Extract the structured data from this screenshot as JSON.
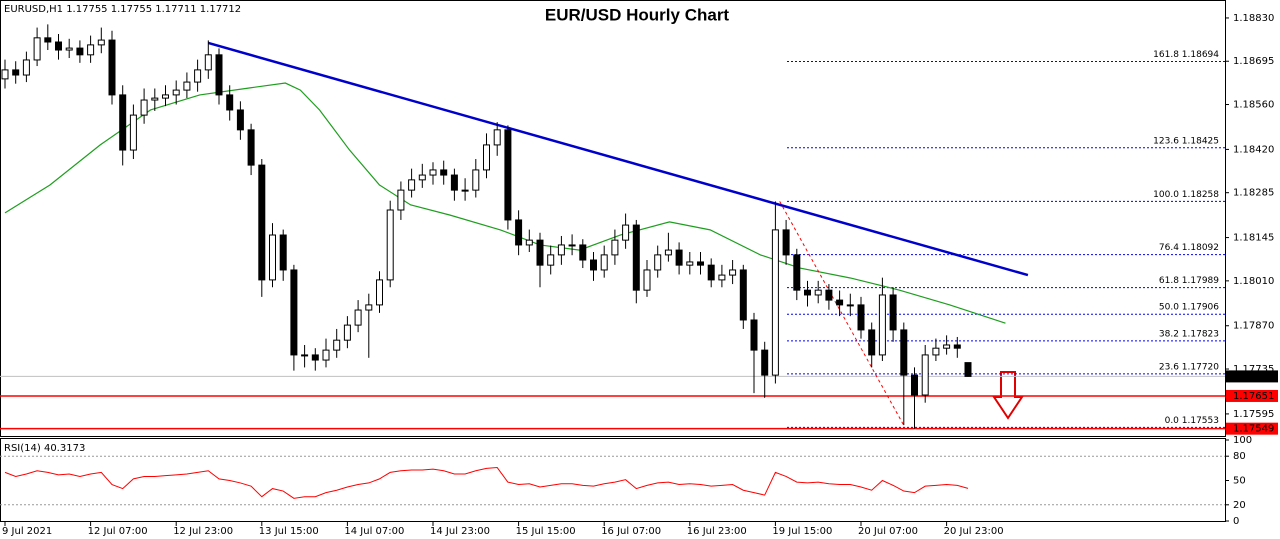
{
  "chart_data": {
    "type": "candlestick",
    "title": "EUR/USD Hourly Chart",
    "info": "EURUSD,H1  1.17755 1.17755 1.17711 1.17712",
    "open": [
      1.1864,
      1.18668,
      1.18652,
      1.18699,
      1.18768,
      1.18755,
      1.1873,
      1.18736,
      1.18715,
      1.18746,
      1.18761,
      1.1859,
      1.18418,
      1.18527,
      1.18574,
      1.1858,
      1.1859,
      1.18605,
      1.1863,
      1.18668,
      1.18715,
      1.1859,
      1.18543,
      1.18481,
      1.18371,
      1.18013,
      1.18153,
      1.18044,
      1.17779,
      1.17779,
      1.17763,
      1.17794,
      1.17825,
      1.17872,
      1.17919,
      1.17935,
      1.18013,
      1.18231,
      1.18293,
      1.18325,
      1.1834,
      1.18356,
      1.1834,
      1.18293,
      1.18293,
      1.18356,
      1.18434,
      1.18481,
      1.182,
      1.18122,
      1.18137,
      1.18059,
      1.18091,
      1.18122,
      1.18122,
      1.18075,
      1.18044,
      1.18091,
      1.18137,
      1.18184,
      1.17981,
      1.18044,
      1.18091,
      1.18106,
      1.18059,
      1.18069,
      1.18059,
      1.18013,
      1.18028,
      1.18044,
      1.17888,
      1.17794,
      1.17716,
      1.18169,
      1.18091,
      1.17981,
      1.17966,
      1.17981,
      1.1795,
      1.17935,
      1.17935,
      1.17857,
      1.17779,
      1.17966,
      1.17857,
      1.17716,
      1.17654,
      1.17779,
      1.178,
      1.1781,
      1.17755
    ],
    "high": [
      1.187,
      1.18695,
      1.18725,
      1.188,
      1.1881,
      1.1878,
      1.18765,
      1.1876,
      1.18775,
      1.188,
      1.1879,
      1.1862,
      1.1856,
      1.1861,
      1.1861,
      1.1862,
      1.18635,
      1.1866,
      1.187,
      1.1876,
      1.18735,
      1.1862,
      1.1857,
      1.185,
      1.1839,
      1.1819,
      1.1817,
      1.1806,
      1.1781,
      1.178,
      1.1783,
      1.1786,
      1.179,
      1.1795,
      1.1797,
      1.1804,
      1.1826,
      1.1832,
      1.1836,
      1.18375,
      1.1838,
      1.18385,
      1.1836,
      1.1833,
      1.1839,
      1.1847,
      1.18505,
      1.18495,
      1.1823,
      1.1817,
      1.1816,
      1.1812,
      1.1815,
      1.18155,
      1.1814,
      1.181,
      1.1812,
      1.1817,
      1.1822,
      1.182,
      1.18075,
      1.1812,
      1.1816,
      1.1813,
      1.181,
      1.181,
      1.1808,
      1.1806,
      1.18075,
      1.1806,
      1.1791,
      1.1782,
      1.18258,
      1.182,
      1.1811,
      1.1801,
      1.1801,
      1.18,
      1.1798,
      1.1797,
      1.1796,
      1.1788,
      1.1802,
      1.1799,
      1.1788,
      1.1774,
      1.1781,
      1.1783,
      1.1784,
      1.17835,
      1.17755
    ],
    "low": [
      1.1861,
      1.18625,
      1.1863,
      1.1868,
      1.1873,
      1.187,
      1.18705,
      1.1869,
      1.1869,
      1.1872,
      1.1856,
      1.1837,
      1.1839,
      1.185,
      1.1854,
      1.18555,
      1.1856,
      1.1858,
      1.186,
      1.1864,
      1.1856,
      1.1851,
      1.1845,
      1.1834,
      1.1796,
      1.1799,
      1.1801,
      1.1773,
      1.1774,
      1.1773,
      1.1774,
      1.1777,
      1.178,
      1.1785,
      1.1777,
      1.1791,
      1.1799,
      1.182,
      1.1827,
      1.183,
      1.1831,
      1.1831,
      1.1826,
      1.1826,
      1.1827,
      1.1833,
      1.184,
      1.1817,
      1.1809,
      1.181,
      1.1799,
      1.1803,
      1.1806,
      1.1809,
      1.1805,
      1.1801,
      1.1802,
      1.1806,
      1.1811,
      1.1794,
      1.1796,
      1.1802,
      1.1807,
      1.1803,
      1.1803,
      1.1803,
      1.1799,
      1.1799,
      1.18,
      1.1786,
      1.1766,
      1.17645,
      1.1769,
      1.1806,
      1.1795,
      1.1793,
      1.1794,
      1.1792,
      1.179,
      1.179,
      1.1783,
      1.1774,
      1.1776,
      1.1782,
      1.1756,
      1.17549,
      1.1763,
      1.1776,
      1.1778,
      1.1777,
      1.17711
    ],
    "close": [
      1.18668,
      1.18652,
      1.18699,
      1.18768,
      1.18755,
      1.1873,
      1.18736,
      1.18715,
      1.18746,
      1.18761,
      1.1859,
      1.18418,
      1.18527,
      1.18574,
      1.1858,
      1.1859,
      1.18605,
      1.1863,
      1.18668,
      1.18715,
      1.1859,
      1.18543,
      1.18481,
      1.18371,
      1.18013,
      1.18153,
      1.18044,
      1.17779,
      1.17779,
      1.17763,
      1.17794,
      1.17825,
      1.17872,
      1.17919,
      1.17935,
      1.18013,
      1.18231,
      1.18293,
      1.18325,
      1.1834,
      1.18356,
      1.1834,
      1.18293,
      1.18293,
      1.18356,
      1.18434,
      1.18481,
      1.182,
      1.18122,
      1.18137,
      1.18059,
      1.18091,
      1.18122,
      1.18122,
      1.18075,
      1.18044,
      1.18091,
      1.18137,
      1.18184,
      1.17981,
      1.18044,
      1.18091,
      1.18106,
      1.18059,
      1.18069,
      1.18059,
      1.18013,
      1.18028,
      1.18044,
      1.17888,
      1.17794,
      1.17716,
      1.18169,
      1.18091,
      1.17981,
      1.17966,
      1.17981,
      1.1795,
      1.17935,
      1.17935,
      1.17857,
      1.17779,
      1.17966,
      1.17857,
      1.17716,
      1.17654,
      1.17779,
      1.178,
      1.1781,
      1.178,
      1.17712
    ],
    "up_color": "#ffffff",
    "down_color": "#000000",
    "ma": {
      "color": "#1e9e1e",
      "x": [
        0,
        4.2,
        8.9,
        13.6,
        18.2,
        22.9,
        26.2,
        27.6,
        29.4,
        32.2,
        35,
        37.9,
        41.6,
        46.3,
        50,
        53.7,
        57.5,
        62.1,
        65.9,
        70.6,
        74.3,
        79,
        83.6,
        88.3,
        93.5
      ],
      "values": [
        1.18222,
        1.18309,
        1.18434,
        1.18543,
        1.1859,
        1.18612,
        1.18627,
        1.18605,
        1.18543,
        1.18418,
        1.18309,
        1.18247,
        1.18215,
        1.18169,
        1.18122,
        1.18106,
        1.18153,
        1.18194,
        1.18169,
        1.18091,
        1.1805,
        1.18019,
        1.17981,
        1.17935,
        1.17878
      ]
    },
    "trendline": {
      "color": "#0000cc",
      "x": [
        19,
        95.6
      ],
      "values": [
        1.18752,
        1.18028
      ]
    },
    "fib_diagonal": {
      "color": "#ff0000",
      "x": [
        72.4,
        84.1
      ],
      "values": [
        1.18258,
        1.17553
      ]
    },
    "fib_color": "#0000ff",
    "fib_levels": [
      {
        "value": 1.18694,
        "label": "161.8 1.18694"
      },
      {
        "value": 1.18425,
        "label": "123.6 1.18425"
      },
      {
        "value": 1.18258,
        "label": "100.0 1.18258"
      },
      {
        "value": 1.18092,
        "label": "76.4 1.18092"
      },
      {
        "value": 1.17989,
        "label": "61.8 1.17989"
      },
      {
        "value": 1.17906,
        "label": "50.0 1.17906"
      },
      {
        "value": 1.17823,
        "label": "38.2 1.17823"
      },
      {
        "value": 1.1772,
        "label": "23.6 1.17720"
      },
      {
        "value": 1.17553,
        "label": "0.0 1.17553"
      }
    ],
    "current_price": {
      "value": 1.17712,
      "label": "1.17712"
    },
    "support_color": "#ff0000",
    "support_lines": [
      {
        "value": 1.17651,
        "label": "1.17651"
      },
      {
        "value": 1.17549,
        "label": "1.17549"
      }
    ],
    "ylim": [
      1.17523,
      1.18886
    ],
    "yticks": [
      {
        "value": 1.1883,
        "label": "1.18830"
      },
      {
        "value": 1.18695,
        "label": "1.18695"
      },
      {
        "value": 1.1856,
        "label": "1.18560"
      },
      {
        "value": 1.1842,
        "label": "1.18420"
      },
      {
        "value": 1.18285,
        "label": "1.18285"
      },
      {
        "value": 1.18145,
        "label": "1.18145"
      },
      {
        "value": 1.1801,
        "label": "1.18010"
      },
      {
        "value": 1.1787,
        "label": "1.17870"
      },
      {
        "value": 1.17735,
        "label": "1.17735"
      },
      {
        "value": 1.17595,
        "label": "1.17595"
      }
    ],
    "xticks": [
      {
        "value": 0,
        "label": "9 Jul 2021"
      },
      {
        "value": 8,
        "label": "12 Jul 07:00"
      },
      {
        "value": 16,
        "label": "12 Jul 23:00"
      },
      {
        "value": 24,
        "label": "13 Jul 15:00"
      },
      {
        "value": 32,
        "label": "14 Jul 07:00"
      },
      {
        "value": 40,
        "label": "14 Jul 23:00"
      },
      {
        "value": 48,
        "label": "15 Jul 15:00"
      },
      {
        "value": 56,
        "label": "16 Jul 07:00"
      },
      {
        "value": 64,
        "label": "16 Jul 23:00"
      },
      {
        "value": 72,
        "label": "19 Jul 15:00"
      },
      {
        "value": 80,
        "label": "20 Jul 07:00"
      },
      {
        "value": 88,
        "label": "20 Jul 23:00"
      }
    ],
    "rsi": {
      "title": "RSI(14) 40.3173",
      "color": "#ff0000",
      "ylim": [
        0,
        100
      ],
      "yticks": [
        100,
        80,
        50,
        20,
        0
      ],
      "levels": [
        80,
        20
      ],
      "values": [
        60,
        55,
        58,
        62,
        60,
        57,
        58,
        55,
        58,
        60,
        45,
        40,
        52,
        55,
        55,
        56,
        57,
        58,
        60,
        62,
        52,
        50,
        47,
        43,
        30,
        40,
        37,
        28,
        30,
        30,
        35,
        38,
        42,
        45,
        47,
        52,
        60,
        62,
        63,
        63,
        64,
        62,
        58,
        58,
        62,
        65,
        66,
        48,
        45,
        46,
        42,
        44,
        46,
        46,
        44,
        43,
        46,
        48,
        51,
        40,
        44,
        47,
        48,
        45,
        46,
        45,
        43,
        44,
        45,
        38,
        35,
        32,
        60,
        55,
        48,
        47,
        48,
        46,
        45,
        45,
        42,
        38,
        50,
        44,
        37,
        35,
        43,
        44,
        45,
        44,
        40.3173
      ]
    }
  }
}
